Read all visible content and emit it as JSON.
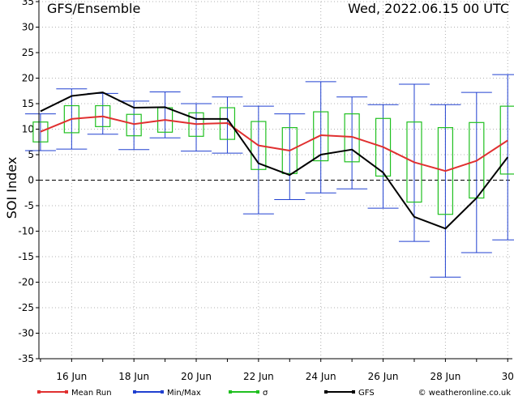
{
  "header": {
    "title": "GFS/Ensemble",
    "datetime": "Wed, 2022.06.15   00 UTC"
  },
  "chart_data": {
    "type": "line",
    "ylabel": "SOI Index",
    "ylim": [
      -35,
      35
    ],
    "yticks": [
      -35,
      -30,
      -25,
      -20,
      -15,
      -10,
      -5,
      0,
      5,
      10,
      15,
      20,
      25,
      30,
      35
    ],
    "x_ticks": [
      "16 Jun",
      "18 Jun",
      "20 Jun",
      "22 Jun",
      "24 Jun",
      "26 Jun",
      "28 Jun",
      "30"
    ],
    "x_tick_days": [
      16,
      18,
      20,
      22,
      24,
      26,
      28,
      30
    ],
    "x_days": [
      15,
      16,
      17,
      18,
      19,
      20,
      21,
      22,
      23,
      24,
      25,
      26,
      27,
      28,
      29,
      30
    ],
    "series": [
      {
        "name": "Mean Run",
        "color": "#e03030",
        "values": [
          9.5,
          12,
          12.5,
          11,
          11.8,
          11,
          11.2,
          6.8,
          5.8,
          8.8,
          8.5,
          6.5,
          3.5,
          1.8,
          3.8,
          7.8
        ]
      },
      {
        "name": "GFS",
        "color": "#000000",
        "values": [
          13.5,
          16.5,
          17.2,
          14.2,
          14.3,
          12,
          12,
          3.3,
          1,
          5,
          6,
          1.5,
          -7.2,
          -9.5,
          -3.5,
          4.5
        ]
      }
    ],
    "min_max": {
      "name": "Min/Max",
      "color": "#2040d0",
      "min": [
        5.8,
        6.1,
        9,
        6,
        8.3,
        5.7,
        5.3,
        -6.6,
        -3.8,
        -2.5,
        -1.7,
        -5.5,
        -12,
        -19,
        -14.2,
        -11.7
      ],
      "max": [
        13,
        17.9,
        17,
        15.5,
        17.3,
        15,
        16.3,
        14.5,
        13,
        19.3,
        16.3,
        14.8,
        18.8,
        14.8,
        17.2,
        20.7
      ]
    },
    "sigma": {
      "name": "σ",
      "color": "#20c020",
      "low": [
        7.5,
        9.3,
        10.5,
        8.7,
        9.4,
        8.6,
        8,
        2.1,
        1.3,
        3.8,
        3.6,
        0.8,
        -4.3,
        -6.7,
        -3.5,
        1.2
      ],
      "high": [
        11.4,
        14.6,
        14.6,
        12.9,
        14.2,
        13.2,
        14.2,
        11.5,
        10.3,
        13.4,
        13,
        12.1,
        11.4,
        10.3,
        11.3,
        14.5
      ]
    },
    "legend": [
      "Mean Run",
      "Min/Max",
      "σ",
      "GFS"
    ],
    "grid": true,
    "legend_position": "bottom"
  },
  "credit": "© weatheronline.co.uk"
}
